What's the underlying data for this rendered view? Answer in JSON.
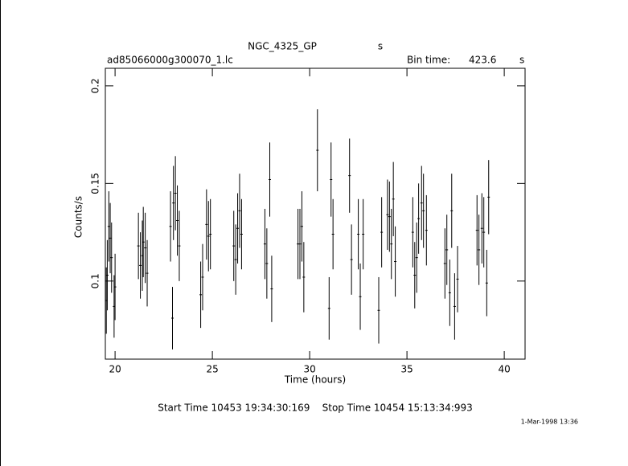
{
  "chart_data": {
    "type": "errorbar",
    "title": "NGC_4325_GP",
    "title_unit": "s",
    "file_name": "ad85066000g300070_1.lc",
    "bin_time_label": "Bin time:",
    "bin_time": 423.6,
    "bin_time_unit": "s",
    "xlabel": "Time (hours)",
    "ylabel": "Counts/s",
    "footer": "Start Time 10453 19:34:30:169    Stop Time 10454 15:13:34:993",
    "timestamp": "1-Mar-1998 13:36",
    "color": "#000000",
    "xlim": [
      19.5,
      41.07
    ],
    "ylim": [
      0.06,
      0.209
    ],
    "xticks": [
      20,
      25,
      30,
      35,
      40
    ],
    "yticks": [
      0.1,
      0.15,
      0.2
    ],
    "x": [
      19.55,
      19.6,
      19.68,
      19.75,
      19.82,
      19.95,
      20.0,
      21.2,
      21.3,
      21.4,
      21.45,
      21.55,
      21.65,
      22.85,
      22.95,
      23.0,
      23.1,
      23.2,
      23.3,
      24.4,
      24.5,
      24.7,
      24.8,
      24.9,
      26.1,
      26.2,
      26.3,
      26.4,
      26.5,
      27.7,
      27.8,
      27.95,
      28.05,
      29.4,
      29.5,
      29.6,
      29.7,
      30.4,
      31.0,
      31.1,
      31.2,
      32.05,
      32.15,
      32.5,
      32.6,
      32.75,
      33.55,
      33.7,
      34.0,
      34.1,
      34.2,
      34.3,
      34.4,
      35.3,
      35.4,
      35.5,
      35.6,
      35.75,
      35.85,
      36.0,
      36.95,
      37.05,
      37.2,
      37.3,
      37.45,
      37.6,
      38.6,
      38.7,
      38.85,
      38.95,
      39.1,
      39.2
    ],
    "values": [
      0.09,
      0.103,
      0.128,
      0.122,
      0.112,
      0.087,
      0.097,
      0.118,
      0.108,
      0.113,
      0.12,
      0.117,
      0.104,
      0.128,
      0.081,
      0.14,
      0.145,
      0.131,
      0.118,
      0.093,
      0.102,
      0.129,
      0.123,
      0.124,
      0.118,
      0.111,
      0.127,
      0.136,
      0.124,
      0.119,
      0.109,
      0.152,
      0.096,
      0.119,
      0.119,
      0.128,
      0.102,
      0.167,
      0.086,
      0.152,
      0.124,
      0.154,
      0.111,
      0.124,
      0.092,
      0.124,
      0.085,
      0.125,
      0.134,
      0.133,
      0.119,
      0.142,
      0.11,
      0.125,
      0.103,
      0.112,
      0.132,
      0.14,
      0.136,
      0.126,
      0.109,
      0.116,
      0.094,
      0.136,
      0.087,
      0.101,
      0.126,
      0.116,
      0.127,
      0.125,
      0.099,
      0.143
    ],
    "errors": [
      0.017,
      0.018,
      0.018,
      0.018,
      0.018,
      0.016,
      0.017,
      0.017,
      0.017,
      0.018,
      0.018,
      0.018,
      0.017,
      0.018,
      0.016,
      0.019,
      0.019,
      0.018,
      0.018,
      0.017,
      0.017,
      0.018,
      0.018,
      0.018,
      0.018,
      0.018,
      0.018,
      0.019,
      0.018,
      0.018,
      0.018,
      0.019,
      0.017,
      0.018,
      0.018,
      0.018,
      0.018,
      0.021,
      0.016,
      0.019,
      0.018,
      0.019,
      0.018,
      0.018,
      0.017,
      0.018,
      0.017,
      0.018,
      0.018,
      0.018,
      0.018,
      0.019,
      0.018,
      0.018,
      0.017,
      0.018,
      0.018,
      0.019,
      0.019,
      0.018,
      0.018,
      0.018,
      0.017,
      0.019,
      0.017,
      0.017,
      0.018,
      0.018,
      0.018,
      0.018,
      0.017,
      0.019
    ]
  }
}
